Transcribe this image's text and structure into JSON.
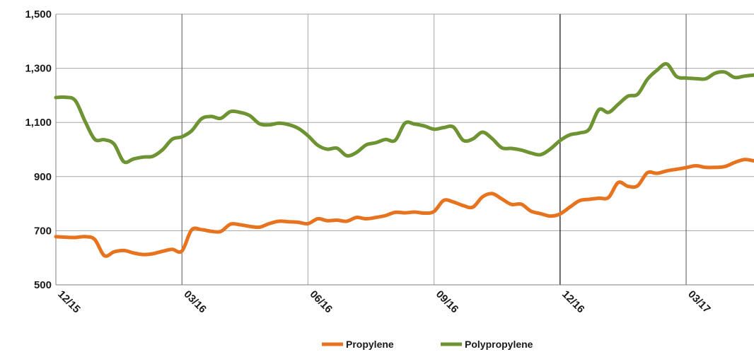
{
  "chart_data": {
    "type": "line",
    "title": "",
    "xlabel": "",
    "ylabel": "",
    "ylim": [
      500,
      1500
    ],
    "y_ticks": [
      "500",
      "700",
      "900",
      "1,100",
      "1,300",
      "1,500"
    ],
    "x_ticks": [
      "12/15",
      "03/16",
      "06/16",
      "09/16",
      "12/16",
      "03/17"
    ],
    "grid": "horizontal gridlines; vertical lines at quarter ticks",
    "legend": "bottom-center",
    "series": [
      {
        "name": "Propylene",
        "color": "#E8731F",
        "x": [
          0,
          1,
          2,
          3,
          4,
          5,
          6,
          7,
          8,
          9,
          10,
          11,
          12,
          13,
          14,
          15,
          16,
          17,
          18,
          19,
          20,
          21,
          22,
          23,
          24,
          25,
          26,
          27,
          28,
          29,
          30,
          31,
          32,
          33,
          34,
          35,
          36,
          37,
          38,
          39,
          40,
          41,
          42,
          43,
          44,
          45,
          46,
          47,
          48,
          49,
          50,
          51,
          52,
          53,
          54,
          55,
          56,
          57,
          58,
          59,
          60,
          61,
          62,
          63,
          64,
          65,
          66,
          67,
          68,
          69,
          70,
          71,
          72
        ],
        "values": [
          678,
          676,
          675,
          678,
          668,
          608,
          622,
          627,
          618,
          612,
          615,
          624,
          631,
          625,
          703,
          704,
          698,
          697,
          724,
          722,
          716,
          713,
          726,
          735,
          733,
          731,
          726,
          744,
          737,
          739,
          735,
          749,
          744,
          749,
          756,
          768,
          766,
          769,
          765,
          771,
          812,
          806,
          793,
          787,
          825,
          837,
          817,
          797,
          798,
          772,
          763,
          754,
          762,
          787,
          811,
          816,
          820,
          823,
          878,
          864,
          866,
          914,
          912,
          921,
          927,
          933,
          940,
          934,
          934,
          937,
          952,
          963,
          958
        ]
      },
      {
        "name": "Polypropylene",
        "color": "#6E9332",
        "x": [
          0,
          1,
          2,
          3,
          4,
          5,
          6,
          7,
          8,
          9,
          10,
          11,
          12,
          13,
          14,
          15,
          16,
          17,
          18,
          19,
          20,
          21,
          22,
          23,
          24,
          25,
          26,
          27,
          28,
          29,
          30,
          31,
          32,
          33,
          34,
          35,
          36,
          37,
          38,
          39,
          40,
          41,
          42,
          43,
          44,
          45,
          46,
          47,
          48,
          49,
          50,
          51,
          52,
          53,
          54,
          55,
          56,
          57,
          58,
          59,
          60,
          61,
          62,
          63,
          64,
          65,
          66,
          67,
          68,
          69,
          70,
          71,
          72
        ],
        "values": [
          1192,
          1193,
          1181,
          1105,
          1038,
          1036,
          1020,
          955,
          965,
          972,
          975,
          999,
          1038,
          1047,
          1069,
          1113,
          1122,
          1115,
          1140,
          1137,
          1125,
          1095,
          1091,
          1097,
          1092,
          1078,
          1051,
          1016,
          1001,
          1005,
          977,
          989,
          1017,
          1025,
          1037,
          1034,
          1097,
          1094,
          1087,
          1075,
          1081,
          1083,
          1034,
          1039,
          1064,
          1040,
          1006,
          1004,
          998,
          987,
          981,
          1002,
          1033,
          1054,
          1061,
          1075,
          1147,
          1137,
          1167,
          1197,
          1204,
          1259,
          1293,
          1316,
          1270,
          1264,
          1262,
          1261,
          1282,
          1286,
          1266,
          1271,
          1275
        ]
      }
    ]
  }
}
